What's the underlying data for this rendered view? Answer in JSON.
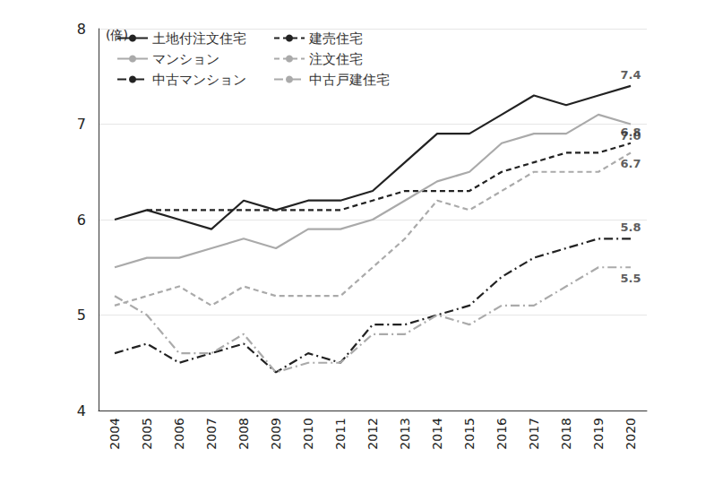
{
  "chart_data": {
    "type": "line",
    "ylabel": "(倍)",
    "categories": [
      "2004",
      "2005",
      "2006",
      "2007",
      "2008",
      "2009",
      "2010",
      "2011",
      "2012",
      "2013",
      "2014",
      "2015",
      "2016",
      "2017",
      "2018",
      "2019",
      "2020"
    ],
    "ylim": [
      4,
      8
    ],
    "yticks": [
      4,
      5,
      6,
      7,
      8
    ],
    "grid": true,
    "legend": "upper left",
    "series": [
      {
        "name": "土地付注文住宅",
        "color": "#222222",
        "line_style": "solid",
        "values": [
          6.0,
          6.1,
          6.0,
          5.9,
          6.2,
          6.1,
          6.2,
          6.2,
          6.3,
          6.6,
          6.9,
          6.9,
          7.1,
          7.3,
          7.2,
          7.3,
          7.4
        ]
      },
      {
        "name": "建売住宅",
        "color": "#222222",
        "line_style": "dashed",
        "values": [
          null,
          6.1,
          6.1,
          6.1,
          6.1,
          6.1,
          6.1,
          6.1,
          6.2,
          6.3,
          6.3,
          6.3,
          6.5,
          6.6,
          6.7,
          6.7,
          6.8
        ]
      },
      {
        "name": "マンション",
        "color": "#aaaaaa",
        "line_style": "solid",
        "values": [
          5.5,
          5.6,
          5.6,
          5.7,
          5.8,
          5.7,
          5.9,
          5.9,
          6.0,
          6.2,
          6.4,
          6.5,
          6.8,
          6.9,
          6.9,
          7.1,
          7.0
        ]
      },
      {
        "name": "注文住宅",
        "color": "#aaaaaa",
        "line_style": "dashed",
        "values": [
          5.1,
          5.2,
          5.3,
          5.1,
          5.3,
          5.2,
          5.2,
          5.2,
          5.5,
          5.8,
          6.2,
          6.1,
          6.3,
          6.5,
          6.5,
          6.5,
          6.7
        ]
      },
      {
        "name": "中古マンション",
        "color": "#222222",
        "line_style": "dashdot",
        "values": [
          4.6,
          4.7,
          4.5,
          4.6,
          4.7,
          4.4,
          4.6,
          4.5,
          4.9,
          4.9,
          5.0,
          5.1,
          5.4,
          5.6,
          5.7,
          5.8,
          5.8
        ]
      },
      {
        "name": "中古戸建住宅",
        "color": "#aaaaaa",
        "line_style": "dashdot",
        "values": [
          5.2,
          5.0,
          4.6,
          4.6,
          4.8,
          4.4,
          4.5,
          4.5,
          4.8,
          4.8,
          5.0,
          4.9,
          5.1,
          5.1,
          5.3,
          5.5,
          5.5
        ]
      }
    ],
    "annotations": [
      {
        "text": "7.4",
        "x": "2020",
        "y": 7.4
      },
      {
        "text": "7.0",
        "x": "2020",
        "y": 7.0
      },
      {
        "text": "6.8",
        "x": "2020",
        "y": 6.8
      },
      {
        "text": "6.7",
        "x": "2020",
        "y": 6.7
      },
      {
        "text": "5.8",
        "x": "2020",
        "y": 5.8
      },
      {
        "text": "5.5",
        "x": "2020",
        "y": 5.5
      }
    ]
  }
}
